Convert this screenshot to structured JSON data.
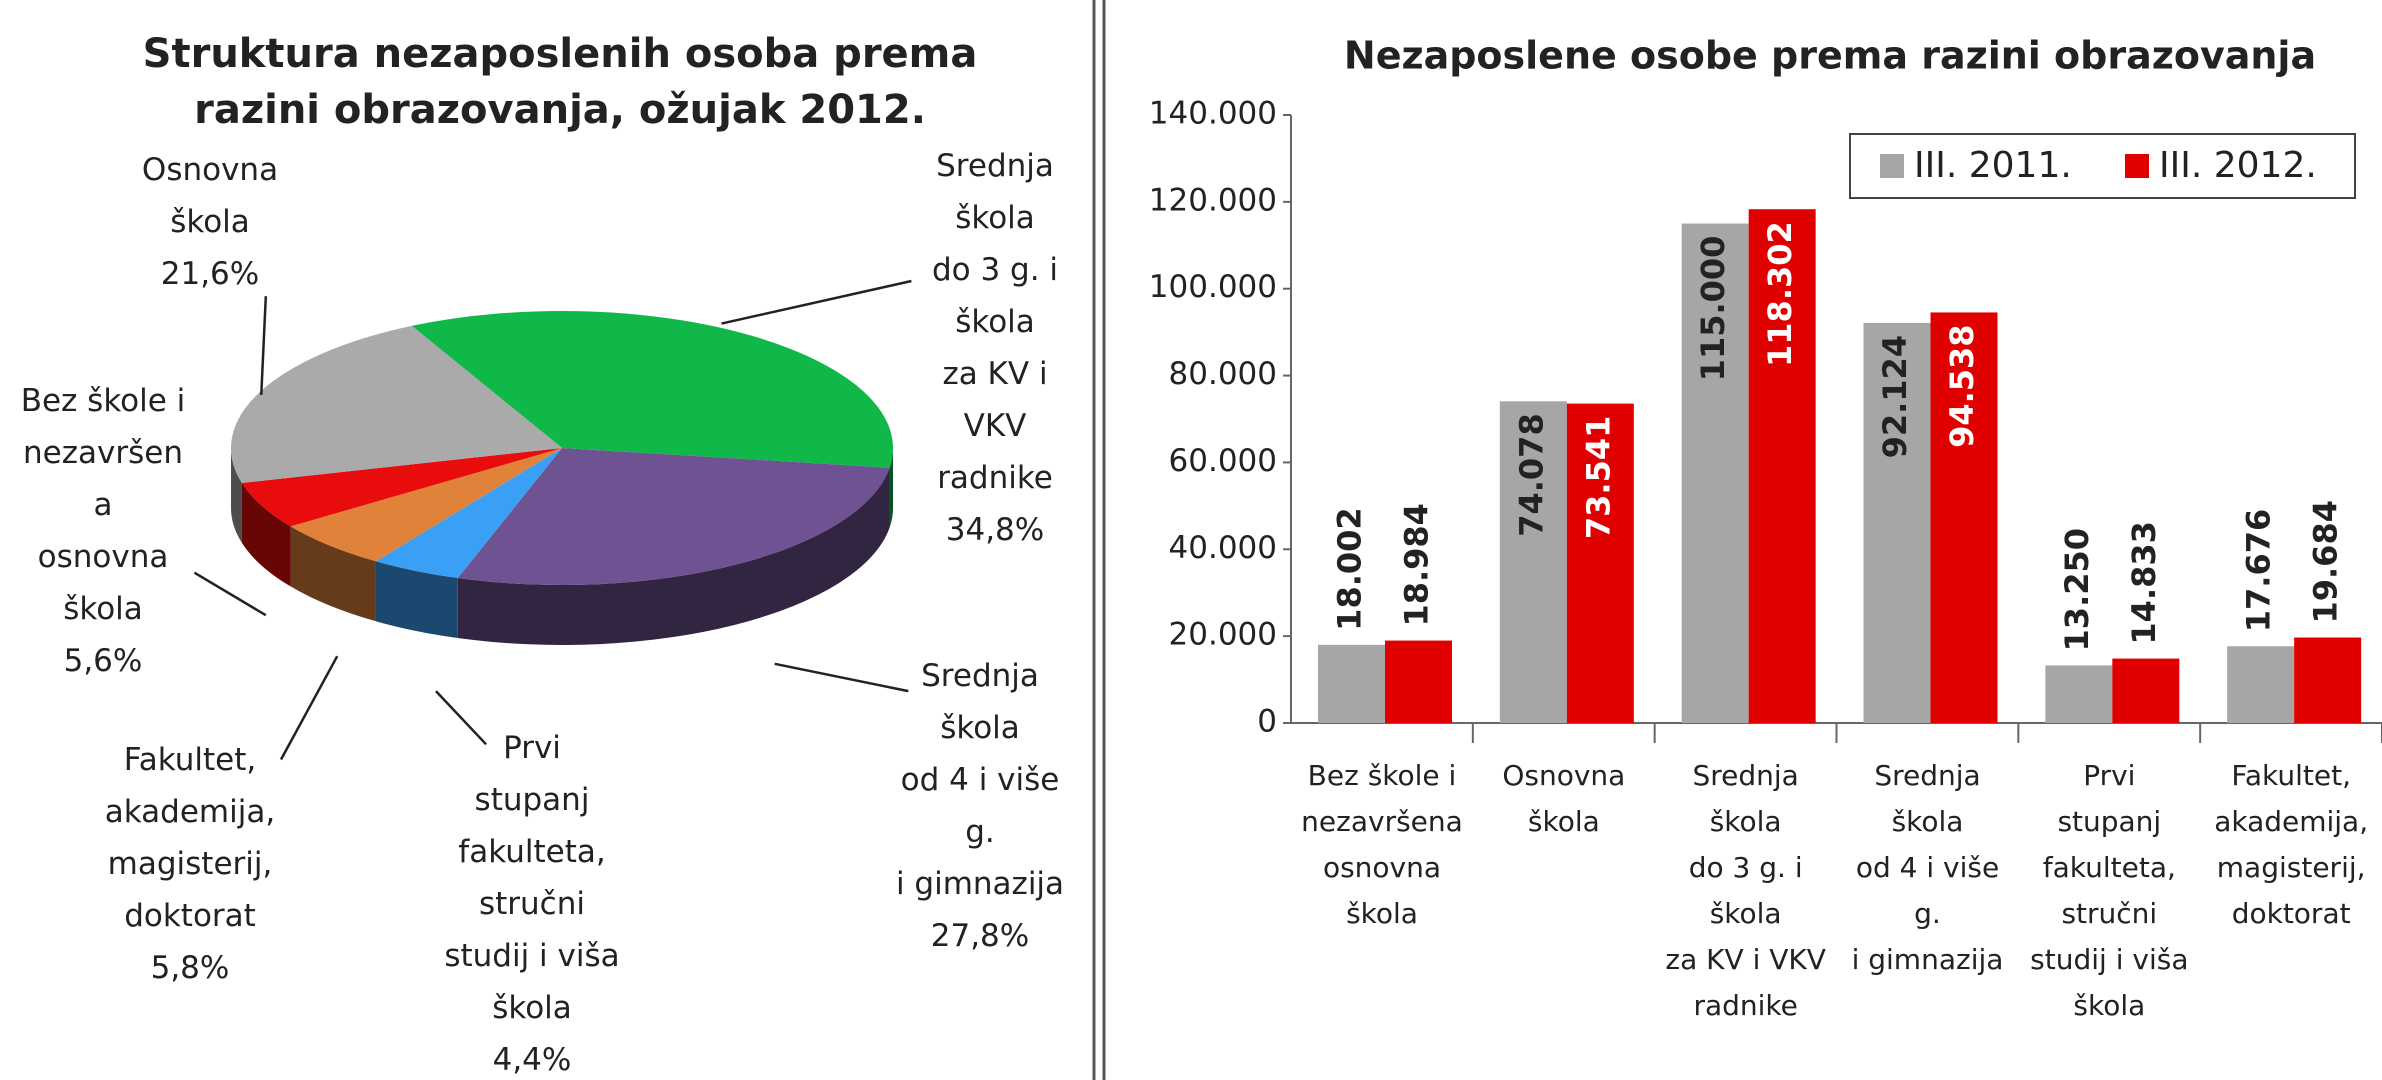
{
  "chart_data": [
    {
      "type": "pie",
      "title": "Struktura nezaposlenih osoba prema\nrazini obrazovanja,  ožujak 2012.",
      "categories": [
        "Srednja\nškola\ndo 3 g. i\nškola\nza KV i\nVKV\nradnike",
        "Srednja\nškola\nod 4 i više\ng.\ni gimnazija",
        "Prvi\nstupanj\nfakulteta,\nstručni\nstudij i viša\nškola",
        "Fakultet,\nakademija,\nmagisterij,\ndoktorat",
        "Bez škole i\nnezavršen\na\nosnovna\nškola",
        "Osnovna\nškola"
      ],
      "values": [
        34.8,
        27.8,
        4.4,
        5.8,
        5.6,
        21.6
      ],
      "value_labels": [
        "34,8%",
        "27,8%",
        "4,4%",
        "5,8%",
        "5,6%",
        "21,6%"
      ],
      "colors": [
        "#10b84a",
        "#6e5291",
        "#3aa0f5",
        "#e0823a",
        "#e80c0c",
        "#aaaaaa"
      ]
    },
    {
      "type": "bar",
      "title": "Nezaposlene osobe prema razini obrazovanja",
      "categories": [
        "Bez škole i\nnezavršena\nosnovna\nškola",
        "Osnovna\nškola",
        "Srednja\nškola\ndo 3 g. i\nškola\nza KV i VKV\nradnike",
        "Srednja\nškola\nod 4 i više\ng.\ni gimnazija",
        "Prvi\nstupanj\nfakulteta,\nstručni\nstudij i viša\nškola",
        "Fakultet,\nakademija,\nmagisterij,\ndoktorat"
      ],
      "series": [
        {
          "name": "III. 2011.",
          "color": "#a6a6a6",
          "values": [
            18002,
            74078,
            115000,
            92124,
            13250,
            17676
          ],
          "value_labels": [
            "18.002",
            "74.078",
            "115.000",
            "92.124",
            "13.250",
            "17.676"
          ]
        },
        {
          "name": "III. 2012.",
          "color": "#e00000",
          "values": [
            18984,
            73541,
            118302,
            94538,
            14833,
            19684
          ],
          "value_labels": [
            "18.984",
            "73.541",
            "118.302",
            "94.538",
            "14.833",
            "19.684"
          ]
        }
      ],
      "ylim": [
        0,
        140000
      ],
      "yticks": [
        0,
        {
          "value": 20000,
          "label": "20.000"
        },
        {
          "value": 40000,
          "label": "40.000"
        },
        {
          "value": 60000,
          "label": "60.000"
        },
        {
          "value": 80000,
          "label": "80.000"
        },
        {
          "value": 100000,
          "label": "100.000"
        },
        {
          "value": 120000,
          "label": "120.000"
        },
        {
          "value": 140000,
          "label": "140.000"
        }
      ],
      "legend": "top-right"
    }
  ]
}
